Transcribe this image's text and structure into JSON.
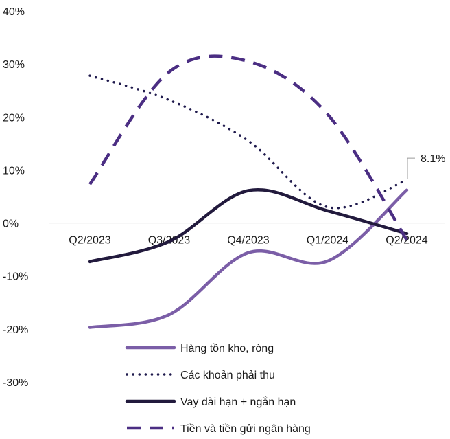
{
  "chart_data": {
    "type": "line",
    "categories": [
      "Q2/2023",
      "Q3/2023",
      "Q4/2023",
      "Q1/2024",
      "Q2/2024"
    ],
    "ylim": [
      -30,
      40
    ],
    "yticks": [
      "40%",
      "30%",
      "20%",
      "10%",
      "0%",
      "-10%",
      "-20%",
      "-30%"
    ],
    "ytick_values": [
      40,
      30,
      20,
      10,
      0,
      -10,
      -20,
      -30
    ],
    "grid": false,
    "legend_position": "bottom",
    "series": [
      {
        "name": "Hàng tồn kho, ròng",
        "values": [
          -19.7,
          -17.3,
          -5.6,
          -7.2,
          6.2
        ],
        "color": "#7b5ea7",
        "style": "solid"
      },
      {
        "name": "Các khoản phải thu",
        "values": [
          27.8,
          23.2,
          15.5,
          3.0,
          8.1
        ],
        "color": "#1f1a4d",
        "style": "dotted"
      },
      {
        "name": "Vay dài hạn + ngắn hạn",
        "values": [
          -7.3,
          -3.5,
          6.1,
          2.3,
          -2.0
        ],
        "color": "#221a3d",
        "style": "solid"
      },
      {
        "name": "Tiền và tiền gửi ngân hàng",
        "values": [
          7.3,
          28.5,
          30.5,
          20.5,
          -3.2
        ],
        "color": "#4b2e83",
        "style": "dashed"
      }
    ],
    "annotation": "8.1%"
  }
}
